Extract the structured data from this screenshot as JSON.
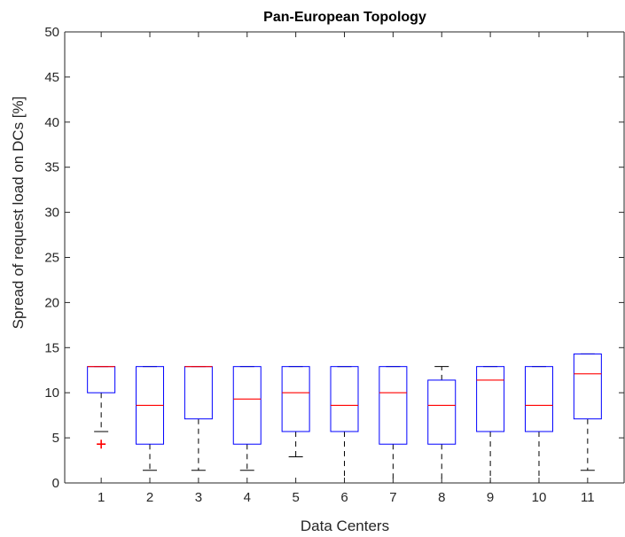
{
  "chart_data": {
    "type": "box",
    "title": "Pan-European Topology",
    "xlabel": "Data Centers",
    "ylabel": "Spread of request load on DCs [%]",
    "ylim": [
      0,
      50
    ],
    "yticks": [
      0,
      5,
      10,
      15,
      20,
      25,
      30,
      35,
      40,
      45,
      50
    ],
    "categories": [
      "1",
      "2",
      "3",
      "4",
      "5",
      "6",
      "7",
      "8",
      "9",
      "10",
      "11"
    ],
    "boxes": [
      {
        "whisker_low": 5.7,
        "q1": 10.0,
        "median": 12.9,
        "q3": 12.9,
        "whisker_high": 12.9,
        "outliers": [
          4.3
        ]
      },
      {
        "whisker_low": 1.4,
        "q1": 4.3,
        "median": 8.6,
        "q3": 12.9,
        "whisker_high": 12.9,
        "outliers": []
      },
      {
        "whisker_low": 1.4,
        "q1": 7.1,
        "median": 12.9,
        "q3": 12.9,
        "whisker_high": 12.9,
        "outliers": []
      },
      {
        "whisker_low": 1.4,
        "q1": 4.3,
        "median": 9.3,
        "q3": 12.9,
        "whisker_high": 12.9,
        "outliers": []
      },
      {
        "whisker_low": 2.9,
        "q1": 5.7,
        "median": 10.0,
        "q3": 12.9,
        "whisker_high": 12.9,
        "outliers": []
      },
      {
        "whisker_low": 0.0,
        "q1": 5.7,
        "median": 8.6,
        "q3": 12.9,
        "whisker_high": 12.9,
        "outliers": []
      },
      {
        "whisker_low": 0.0,
        "q1": 4.3,
        "median": 10.0,
        "q3": 12.9,
        "whisker_high": 12.9,
        "outliers": []
      },
      {
        "whisker_low": 0.0,
        "q1": 4.3,
        "median": 8.6,
        "q3": 11.4,
        "whisker_high": 12.9,
        "outliers": []
      },
      {
        "whisker_low": 0.0,
        "q1": 5.7,
        "median": 11.4,
        "q3": 12.9,
        "whisker_high": 12.9,
        "outliers": []
      },
      {
        "whisker_low": 0.0,
        "q1": 5.7,
        "median": 8.6,
        "q3": 12.9,
        "whisker_high": 12.9,
        "outliers": []
      },
      {
        "whisker_low": 1.4,
        "q1": 7.1,
        "median": 12.1,
        "q3": 14.3,
        "whisker_high": 14.3,
        "outliers": []
      }
    ],
    "grid": false,
    "colors": {
      "box": "#0000ff",
      "median": "#ff0000",
      "whisker": "#000000",
      "outlier": "#ff0000",
      "axis": "#262626"
    }
  }
}
